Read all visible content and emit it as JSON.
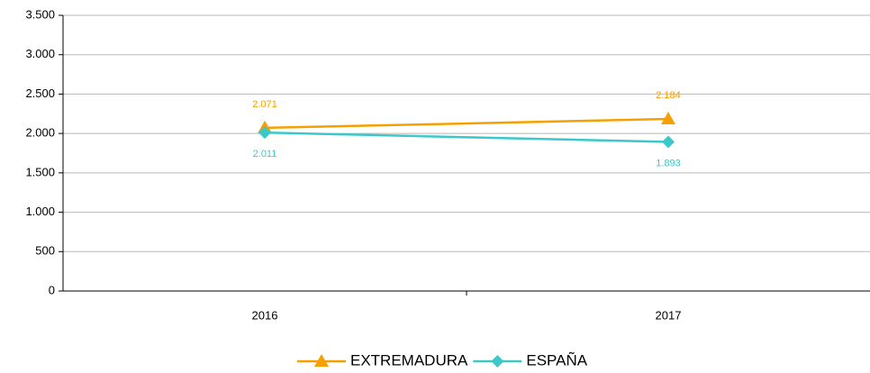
{
  "chart_data": {
    "type": "line",
    "categories": [
      "2016",
      "2017"
    ],
    "series": [
      {
        "name": "EXTREMADURA",
        "color": "#f5a000",
        "marker": "triangle",
        "values": [
          2071,
          2184
        ],
        "value_labels": [
          "2.071",
          "2.184"
        ]
      },
      {
        "name": "ESPAÑA",
        "color": "#3cc8c8",
        "marker": "diamond",
        "values": [
          2011,
          1893
        ],
        "value_labels": [
          "2.011",
          "1.893"
        ]
      }
    ],
    "ylim": [
      0,
      3500
    ],
    "yticks": [
      0,
      500,
      {
        "value": 1000,
        "label": "1.000"
      },
      {
        "value": 1500,
        "label": "1.500"
      },
      {
        "value": 2000,
        "label": "2.000"
      },
      {
        "value": 2500,
        "label": "2.500"
      },
      {
        "value": 3000,
        "label": "3.000"
      },
      {
        "value": 3500,
        "label": "3.500"
      }
    ],
    "grid": true,
    "legend": "bottom"
  }
}
